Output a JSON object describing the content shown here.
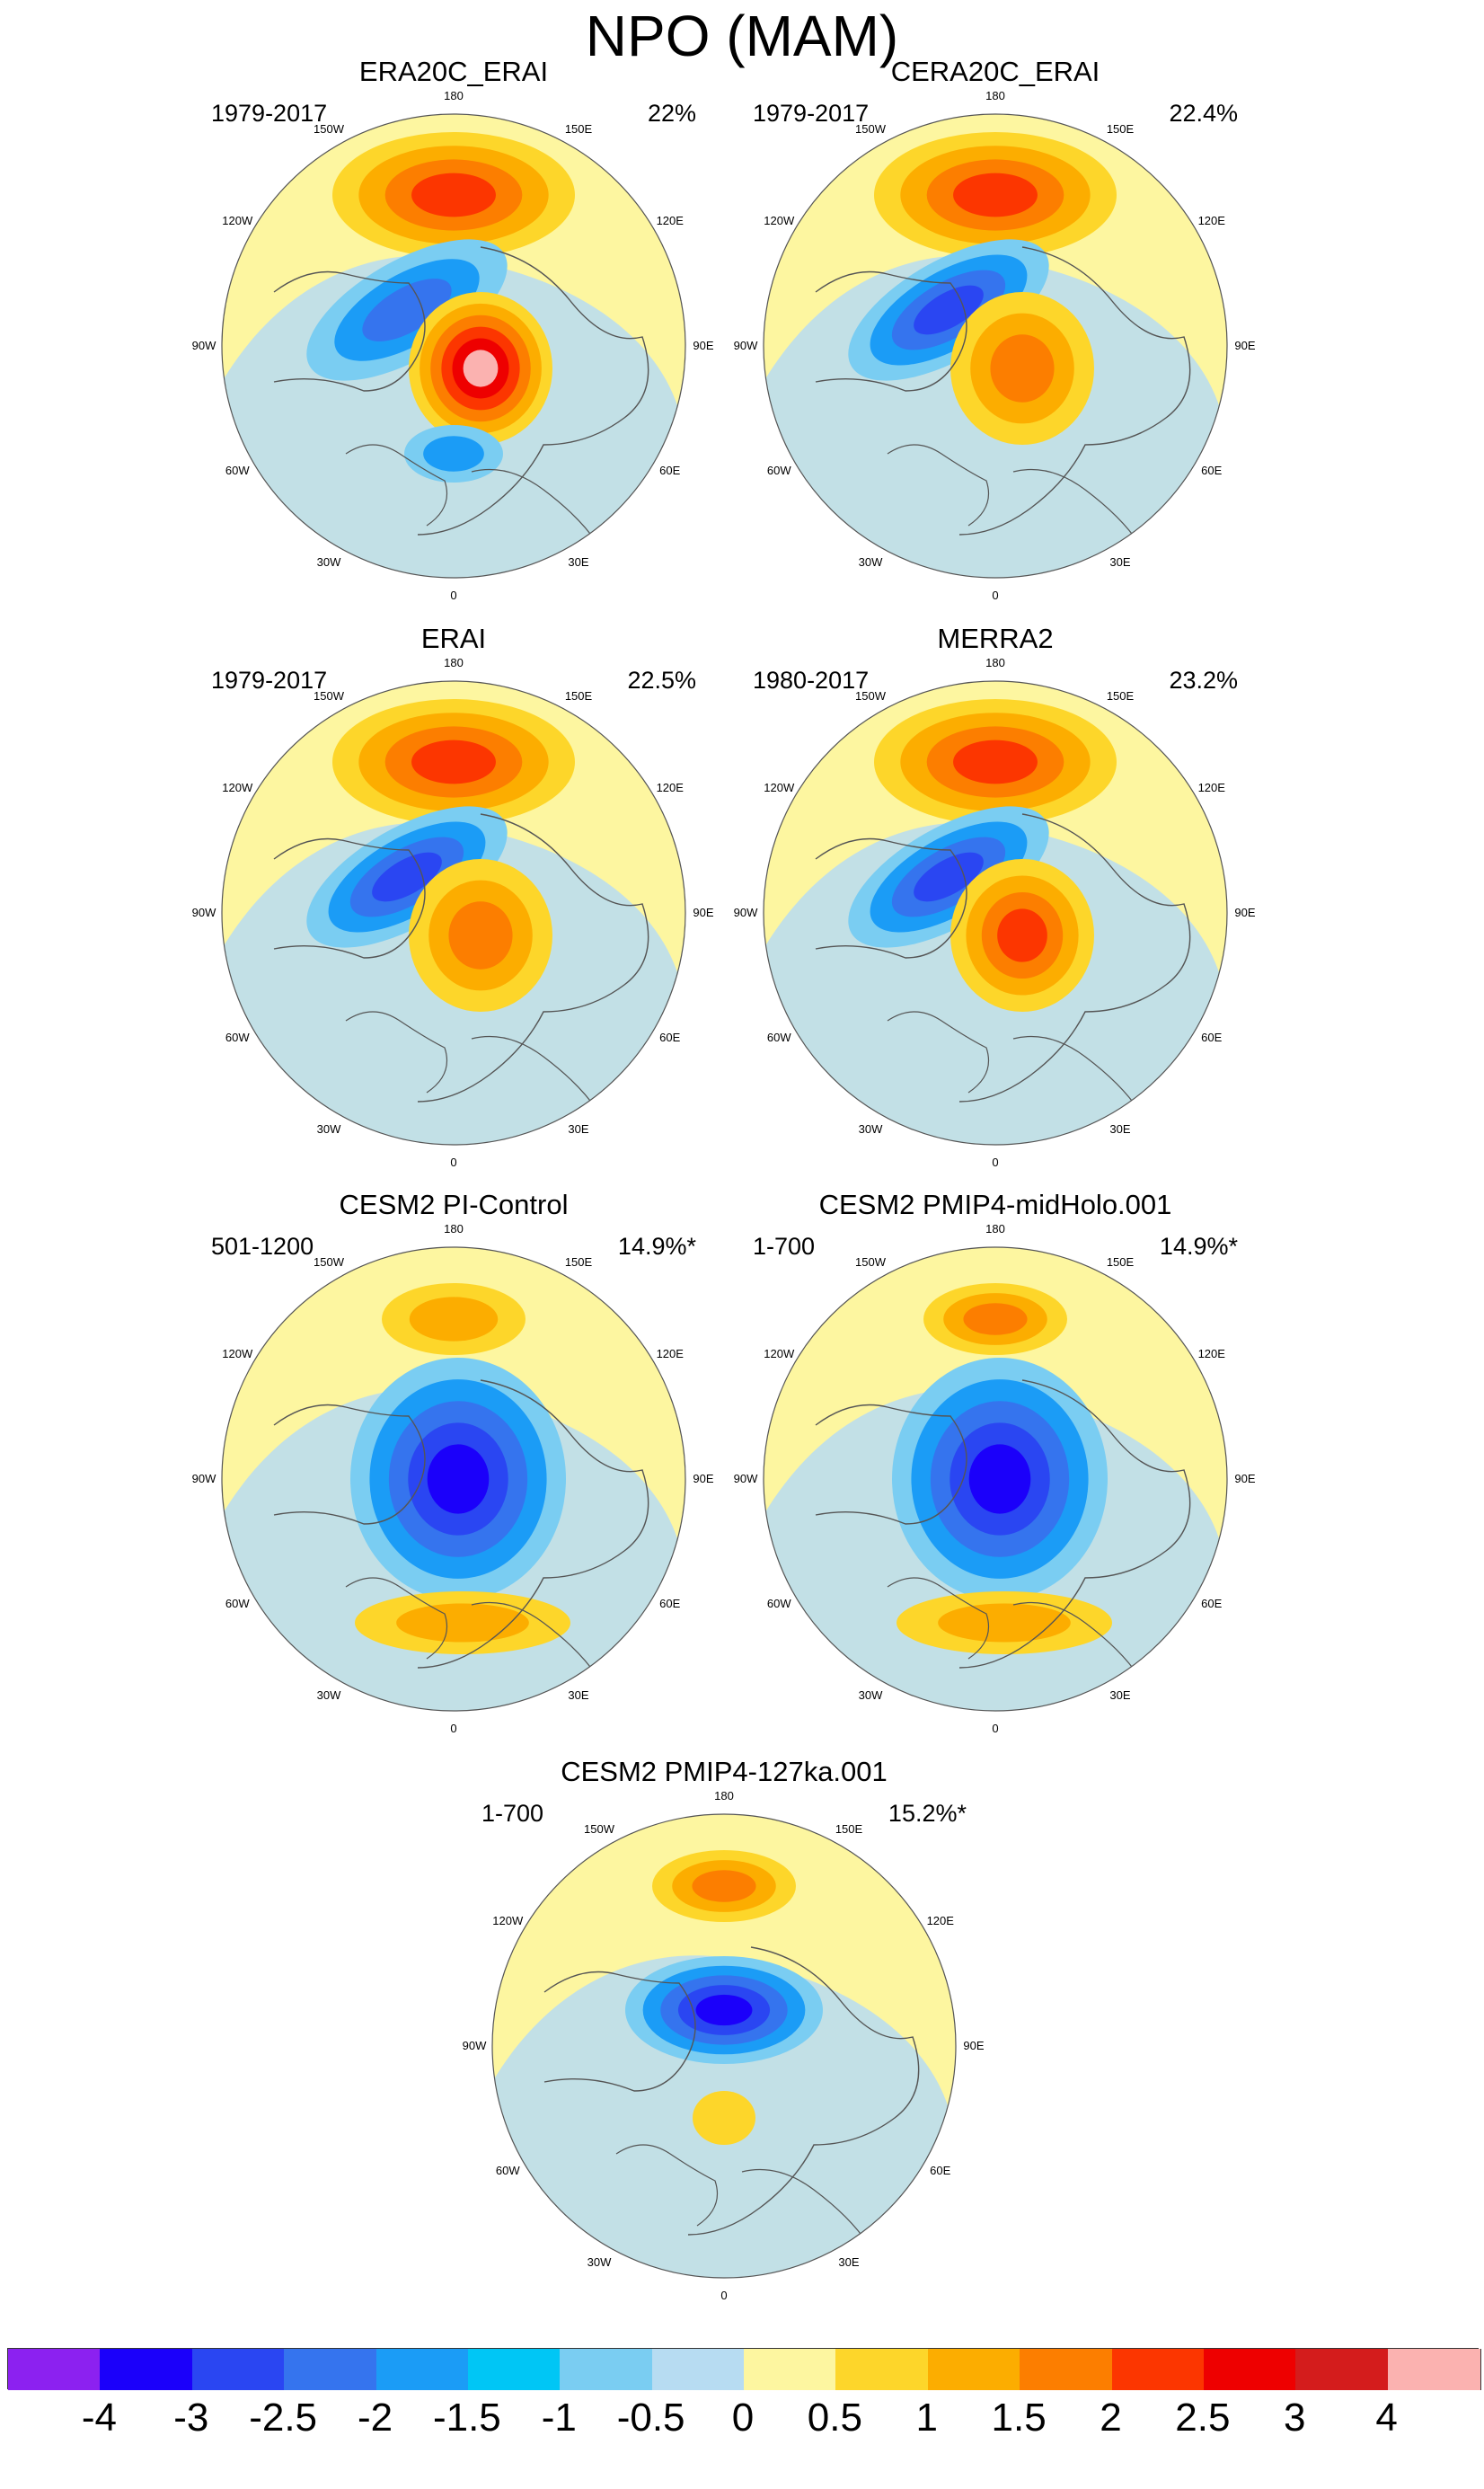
{
  "title": "NPO (MAM)",
  "colors": {
    "ocean": "#b7dcf2",
    "land_neutral": "#fdf6a0",
    "coast": "#555555",
    "border": "#555555"
  },
  "panels": [
    {
      "title": "ERA20C_ERAI",
      "period": "1979-2017",
      "percent": "22%",
      "anomalies": [
        {
          "kind": "pos",
          "level": 3,
          "shape": "pacific-high"
        },
        {
          "kind": "neg",
          "level": 2,
          "shape": "band"
        },
        {
          "kind": "pos",
          "level": 5,
          "shape": "siberia"
        },
        {
          "kind": "neg",
          "level": 1,
          "shape": "europe"
        }
      ]
    },
    {
      "title": "CERA20C_ERAI",
      "period": "1979-2017",
      "percent": "22.4%",
      "anomalies": [
        {
          "kind": "pos",
          "level": 3,
          "shape": "pacific-high"
        },
        {
          "kind": "neg",
          "level": 3,
          "shape": "band"
        },
        {
          "kind": "pos",
          "level": 2,
          "shape": "siberia"
        }
      ]
    },
    {
      "title": "ERAI",
      "period": "1979-2017",
      "percent": "22.5%",
      "anomalies": [
        {
          "kind": "pos",
          "level": 3,
          "shape": "pacific-high"
        },
        {
          "kind": "neg",
          "level": 3,
          "shape": "band"
        },
        {
          "kind": "pos",
          "level": 2,
          "shape": "siberia"
        }
      ]
    },
    {
      "title": "MERRA2",
      "period": "1980-2017",
      "percent": "23.2%",
      "anomalies": [
        {
          "kind": "pos",
          "level": 3,
          "shape": "pacific-high"
        },
        {
          "kind": "neg",
          "level": 3,
          "shape": "band"
        },
        {
          "kind": "pos",
          "level": 3,
          "shape": "siberia"
        }
      ]
    },
    {
      "title": "CESM2 PI-Control",
      "period": "501-1200",
      "percent": "14.9%*",
      "anomalies": [
        {
          "kind": "pos",
          "level": 1,
          "shape": "pacific-small"
        },
        {
          "kind": "neg",
          "level": 4,
          "shape": "arctic-big"
        },
        {
          "kind": "pos",
          "level": 1,
          "shape": "atlantic"
        }
      ]
    },
    {
      "title": "CESM2 PMIP4-midHolo.001",
      "period": "1-700",
      "percent": "14.9%*",
      "anomalies": [
        {
          "kind": "pos",
          "level": 2,
          "shape": "pacific-small"
        },
        {
          "kind": "neg",
          "level": 4,
          "shape": "arctic-big"
        },
        {
          "kind": "pos",
          "level": 1,
          "shape": "atlantic"
        }
      ]
    },
    {
      "title": "CESM2 PMIP4-127ka.001",
      "period": "1-700",
      "percent": "15.2%*",
      "anomalies": [
        {
          "kind": "pos",
          "level": 2,
          "shape": "pacific-small"
        },
        {
          "kind": "neg",
          "level": 4,
          "shape": "arctic-small"
        },
        {
          "kind": "pos",
          "level": 0,
          "shape": "siberia-small"
        }
      ]
    }
  ],
  "lon_labels": [
    "180",
    "150E",
    "120E",
    "90E",
    "60E",
    "30E",
    "0",
    "30W",
    "60W",
    "90W",
    "120W",
    "150W"
  ],
  "colorbar": {
    "colors": [
      "#8c21f0",
      "#1b00fa",
      "#2a46f2",
      "#3574ee",
      "#1b9cf6",
      "#00c6f5",
      "#7acdf2",
      "#b7dcf2",
      "#fdf6a0",
      "#fdd62a",
      "#fcad00",
      "#fc7e00",
      "#fc3600",
      "#ee0000",
      "#d41c1c",
      "#fbb2b0"
    ],
    "ticks": [
      "-4",
      "-3",
      "-2.5",
      "-2",
      "-1.5",
      "-1",
      "-0.5",
      "0",
      "0.5",
      "1",
      "1.5",
      "2",
      "2.5",
      "3",
      "4"
    ]
  }
}
